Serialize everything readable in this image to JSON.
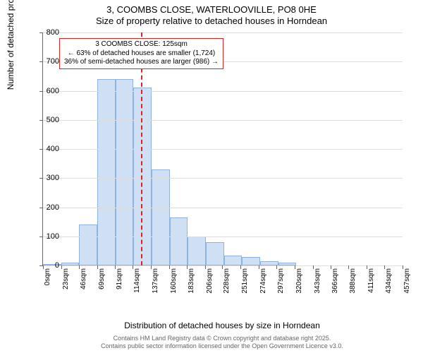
{
  "title": {
    "line1": "3, COOMBS CLOSE, WATERLOOVILLE, PO8 0HE",
    "line2": "Size of property relative to detached houses in Horndean"
  },
  "chart": {
    "type": "histogram",
    "background_color": "#ffffff",
    "grid_color": "#dddddd",
    "bar_fill": "#cfe0f5",
    "bar_stroke": "#8fb3df",
    "ref_line_color": "#d22",
    "callout_border": "#d22",
    "y": {
      "label": "Number of detached properties",
      "min": 0,
      "max": 800,
      "ticks": [
        0,
        100,
        200,
        300,
        400,
        500,
        600,
        700,
        800
      ]
    },
    "x": {
      "label": "Distribution of detached houses by size in Horndean",
      "bin_width": 23,
      "ticks": [
        0,
        23,
        46,
        69,
        91,
        114,
        137,
        160,
        183,
        206,
        228,
        251,
        274,
        297,
        320,
        343,
        366,
        388,
        411,
        434,
        457
      ],
      "unit": "sqm"
    },
    "bars": [
      5,
      10,
      140,
      640,
      640,
      610,
      330,
      165,
      100,
      80,
      35,
      30,
      15,
      10,
      0,
      0,
      0,
      0,
      0,
      0
    ],
    "reference": {
      "x_value": 125,
      "callout_lines": [
        "3 COOMBS CLOSE: 125sqm",
        "← 63% of detached houses are smaller (1,724)",
        "36% of semi-detached houses are larger (986) →"
      ]
    }
  },
  "footer": {
    "line1": "Contains HM Land Registry data © Crown copyright and database right 2025.",
    "line2": "Contains public sector information licensed under the Open Government Licence v3.0."
  },
  "fonts": {
    "title_size": 13,
    "axis_label_size": 12,
    "tick_size": 11,
    "callout_size": 10,
    "footer_size": 9
  }
}
